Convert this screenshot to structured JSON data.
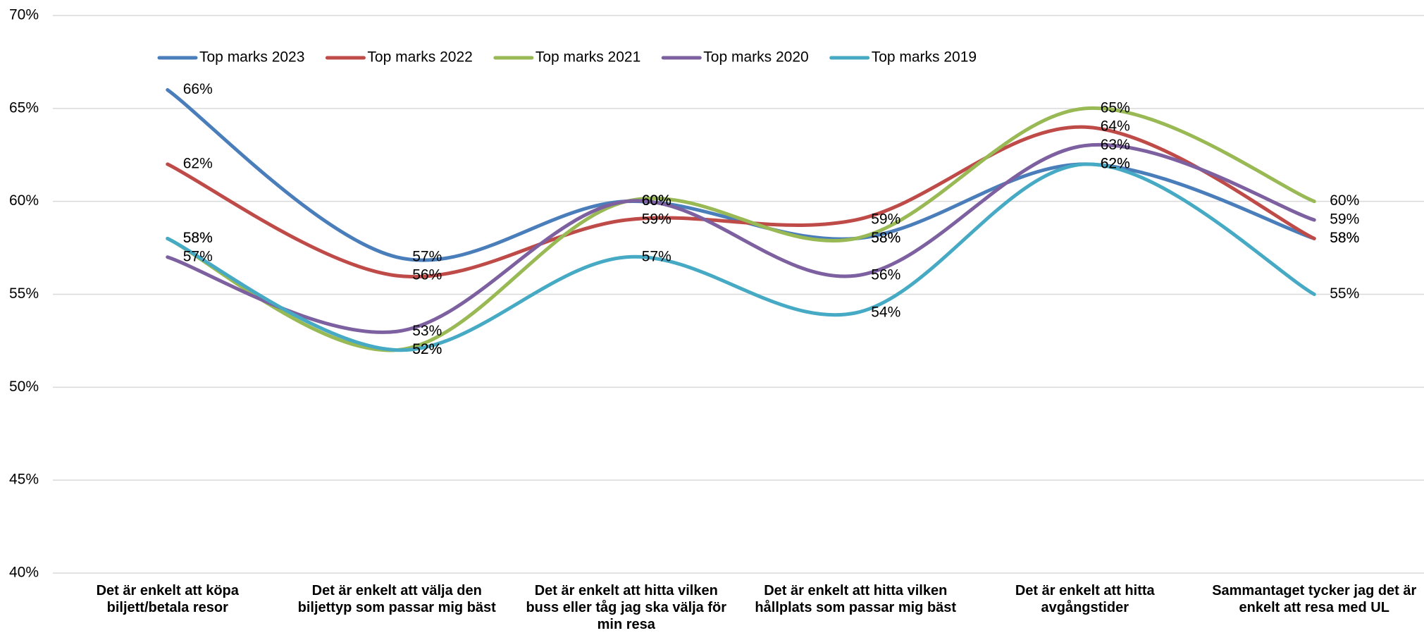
{
  "chart_data": {
    "type": "line",
    "categories": [
      "Det är enkelt att köpa biljett/betala resor",
      "Det är enkelt att välja den biljettyp som passar mig bäst",
      "Det är enkelt att hitta vilken buss eller tåg jag ska välja för min resa",
      "Det är enkelt att hitta vilken hållplats som passar mig bäst",
      "Det är enkelt att hitta avgångstider",
      "Sammantaget tycker jag det är enkelt att resa med UL"
    ],
    "series": [
      {
        "name": "Top marks 2023",
        "color": "#4a7ebb",
        "values": [
          66,
          57,
          60,
          58,
          62,
          58
        ],
        "value_labels": [
          "66%",
          "57%",
          "60%",
          "58%",
          "62%",
          "58%"
        ]
      },
      {
        "name": "Top marks 2022",
        "color": "#be4b48",
        "values": [
          62,
          56,
          59,
          59,
          64,
          58
        ],
        "value_labels": [
          "62%",
          "56%",
          "59%",
          "59%",
          "64%",
          "58%"
        ]
      },
      {
        "name": "Top marks 2021",
        "color": "#98b954",
        "values": [
          58,
          52,
          60,
          58,
          65,
          60
        ],
        "value_labels": [
          "58%",
          "52%",
          "60%",
          "58%",
          "65%",
          "60%"
        ]
      },
      {
        "name": "Top marks 2020",
        "color": "#7d60a0",
        "values": [
          57,
          53,
          60,
          56,
          63,
          59
        ],
        "value_labels": [
          "57%",
          "53%",
          "60%",
          "56%",
          "63%",
          "59%"
        ]
      },
      {
        "name": "Top marks 2019",
        "color": "#46aac5",
        "values": [
          58,
          52,
          57,
          54,
          62,
          55
        ],
        "value_labels": [
          "58%",
          "52%",
          "57%",
          "54%",
          "62%",
          "55%"
        ]
      }
    ],
    "ylim": [
      40,
      70
    ],
    "yticks": [
      {
        "value": 40,
        "label": "40%"
      },
      {
        "value": 45,
        "label": "45%"
      },
      {
        "value": 50,
        "label": "50%"
      },
      {
        "value": 55,
        "label": "55%"
      },
      {
        "value": 60,
        "label": "60%"
      },
      {
        "value": 65,
        "label": "65%"
      },
      {
        "value": 70,
        "label": "70%"
      }
    ],
    "grid": true,
    "legend": "top",
    "smooth": true
  }
}
